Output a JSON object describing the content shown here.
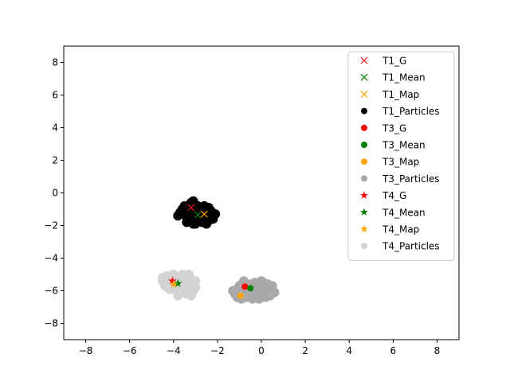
{
  "chart_data": {
    "type": "scatter",
    "title": "",
    "xlabel": "",
    "ylabel": "",
    "xlim": [
      -9,
      9
    ],
    "ylim": [
      -9,
      9
    ],
    "xticks": [
      -8,
      -6,
      -4,
      -2,
      0,
      2,
      4,
      6,
      8
    ],
    "yticks": [
      -8,
      -6,
      -4,
      -2,
      0,
      2,
      4,
      6,
      8
    ],
    "grid": false,
    "legend_position": "top-right",
    "series": [
      {
        "name": "T1_G",
        "marker": "x",
        "color": "#e41a1c",
        "points": [
          [
            -3.2,
            -0.9
          ]
        ]
      },
      {
        "name": "T1_Mean",
        "marker": "x",
        "color": "#008000",
        "points": [
          [
            -2.9,
            -1.35
          ]
        ]
      },
      {
        "name": "T1_Map",
        "marker": "x",
        "color": "#ffa500",
        "points": [
          [
            -2.6,
            -1.3
          ]
        ]
      },
      {
        "name": "T1_Particles",
        "marker": "o",
        "color": "#000000",
        "points": [
          [
            -3.6,
            -1.0
          ],
          [
            -3.5,
            -1.3
          ],
          [
            -3.3,
            -1.6
          ],
          [
            -3.1,
            -1.9
          ],
          [
            -3.2,
            -0.6
          ],
          [
            -3.0,
            -1.1
          ],
          [
            -2.8,
            -1.5
          ],
          [
            -2.6,
            -1.2
          ],
          [
            -2.4,
            -0.9
          ],
          [
            -2.2,
            -1.4
          ],
          [
            -2.4,
            -1.7
          ],
          [
            -2.7,
            -1.8
          ],
          [
            -2.9,
            -0.8
          ],
          [
            -3.4,
            -1.5
          ],
          [
            -3.7,
            -1.2
          ],
          [
            -3.5,
            -0.8
          ],
          [
            -3.2,
            -1.3
          ],
          [
            -2.9,
            -1.6
          ],
          [
            -2.6,
            -0.8
          ],
          [
            -2.3,
            -1.1
          ],
          [
            -2.1,
            -1.3
          ],
          [
            -3.0,
            -1.9
          ],
          [
            -3.3,
            -1.0
          ],
          [
            -2.5,
            -1.5
          ],
          [
            -3.8,
            -1.4
          ],
          [
            -3.1,
            -0.5
          ],
          [
            -2.8,
            -1.0
          ],
          [
            -2.5,
            -1.9
          ],
          [
            -3.4,
            -1.8
          ],
          [
            -2.2,
            -1.6
          ]
        ]
      },
      {
        "name": "T3_G",
        "marker": "o",
        "color": "#ff0000",
        "points": [
          [
            -0.75,
            -5.75
          ]
        ]
      },
      {
        "name": "T3_Mean",
        "marker": "o",
        "color": "#008000",
        "points": [
          [
            -0.5,
            -5.85
          ]
        ]
      },
      {
        "name": "T3_Map",
        "marker": "o",
        "color": "#ffa500",
        "points": [
          [
            -0.95,
            -6.3
          ]
        ]
      },
      {
        "name": "T3_Particles",
        "marker": "o",
        "color": "#a9a9a9",
        "points": [
          [
            -1.2,
            -6.2
          ],
          [
            -1.1,
            -5.9
          ],
          [
            -0.9,
            -5.6
          ],
          [
            -0.7,
            -6.4
          ],
          [
            -0.5,
            -6.1
          ],
          [
            -0.3,
            -5.5
          ],
          [
            -0.1,
            -5.8
          ],
          [
            0.1,
            -6.2
          ],
          [
            0.3,
            -5.6
          ],
          [
            0.5,
            -6.0
          ],
          [
            0.6,
            -6.1
          ],
          [
            -0.4,
            -6.5
          ],
          [
            -0.8,
            -5.4
          ],
          [
            -0.6,
            -5.9
          ],
          [
            -0.2,
            -6.3
          ],
          [
            0.0,
            -5.4
          ],
          [
            0.2,
            -5.9
          ],
          [
            -1.0,
            -5.7
          ],
          [
            -0.9,
            -6.5
          ],
          [
            -0.3,
            -6.0
          ],
          [
            0.4,
            -6.3
          ],
          [
            -1.3,
            -6.0
          ],
          [
            -0.5,
            -5.6
          ],
          [
            0.2,
            -6.4
          ],
          [
            -0.7,
            -6.0
          ],
          [
            0.1,
            -5.5
          ],
          [
            -1.1,
            -6.4
          ],
          [
            -0.1,
            -6.5
          ],
          [
            0.5,
            -5.7
          ],
          [
            -0.6,
            -6.3
          ]
        ]
      },
      {
        "name": "T4_G",
        "marker": "*",
        "color": "#ff0000",
        "points": [
          [
            -4.05,
            -5.4
          ]
        ]
      },
      {
        "name": "T4_Mean",
        "marker": "*",
        "color": "#008000",
        "points": [
          [
            -3.8,
            -5.55
          ]
        ]
      },
      {
        "name": "T4_Map",
        "marker": "*",
        "color": "#ffa500",
        "points": [
          [
            -4.0,
            -5.6
          ]
        ]
      },
      {
        "name": "T4_Particles",
        "marker": "o",
        "color": "#d3d3d3",
        "points": [
          [
            -4.5,
            -5.4
          ],
          [
            -4.3,
            -5.1
          ],
          [
            -4.1,
            -5.6
          ],
          [
            -3.9,
            -5.2
          ],
          [
            -3.7,
            -5.9
          ],
          [
            -3.5,
            -5.3
          ],
          [
            -3.3,
            -5.7
          ],
          [
            -3.1,
            -6.0
          ],
          [
            -3.0,
            -5.4
          ],
          [
            -4.2,
            -5.9
          ],
          [
            -3.8,
            -6.3
          ],
          [
            -3.4,
            -6.2
          ],
          [
            -3.6,
            -5.0
          ],
          [
            -4.0,
            -5.0
          ],
          [
            -3.2,
            -5.3
          ],
          [
            -4.4,
            -5.7
          ],
          [
            -3.9,
            -5.8
          ],
          [
            -3.5,
            -5.6
          ],
          [
            -3.2,
            -6.3
          ],
          [
            -4.1,
            -5.3
          ],
          [
            -3.7,
            -5.4
          ],
          [
            -3.3,
            -5.0
          ],
          [
            -4.3,
            -5.5
          ],
          [
            -3.6,
            -6.1
          ],
          [
            -3.0,
            -5.8
          ],
          [
            -3.9,
            -6.0
          ],
          [
            -3.4,
            -5.9
          ],
          [
            -4.5,
            -5.2
          ],
          [
            -3.8,
            -5.2
          ],
          [
            -3.1,
            -5.6
          ]
        ]
      }
    ]
  }
}
